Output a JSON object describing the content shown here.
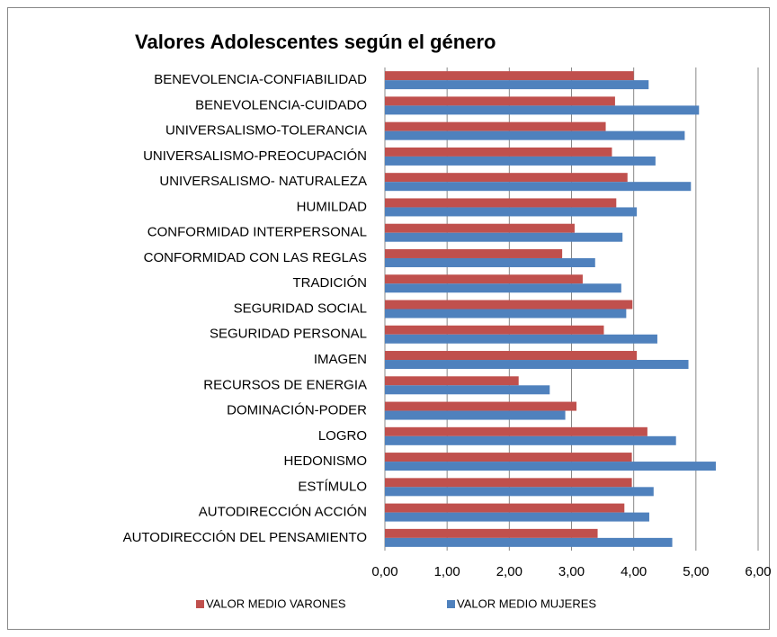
{
  "chart_data": {
    "type": "bar",
    "orientation": "horizontal",
    "title": "Valores Adolescentes según el género",
    "categories": [
      "BENEVOLENCIA-CONFIABILIDAD",
      "BENEVOLENCIA-CUIDADO",
      "UNIVERSALISMO-TOLERANCIA",
      "UNIVERSALISMO-PREOCUPACIÓN",
      "UNIVERSALISMO- NATURALEZA",
      "HUMILDAD",
      "CONFORMIDAD INTERPERSONAL",
      "CONFORMIDAD CON LAS REGLAS",
      "TRADICIÓN",
      "SEGURIDAD SOCIAL",
      "SEGURIDAD PERSONAL",
      "IMAGEN",
      "RECURSOS DE ENERGIA",
      "DOMINACIÓN-PODER",
      "LOGRO",
      "HEDONISMO",
      "ESTÍMULO",
      "AUTODIRECCIÓN ACCIÓN",
      "AUTODIRECCIÓN DEL PENSAMIENTO"
    ],
    "series": [
      {
        "name": "VALOR MEDIO VARONES",
        "color": "#c0504d",
        "values": [
          4.0,
          3.7,
          3.55,
          3.65,
          3.9,
          3.72,
          3.05,
          2.85,
          3.18,
          3.98,
          3.52,
          4.05,
          2.15,
          3.08,
          4.22,
          3.97,
          3.97,
          3.85,
          3.42
        ]
      },
      {
        "name": "VALOR MEDIO MUJERES",
        "color": "#4f81bd",
        "values": [
          4.24,
          5.05,
          4.82,
          4.35,
          4.92,
          4.05,
          3.82,
          3.38,
          3.8,
          3.88,
          4.38,
          4.88,
          2.65,
          2.9,
          4.68,
          5.32,
          4.32,
          4.25,
          4.62
        ]
      }
    ],
    "xlim": [
      0,
      6
    ],
    "xticks": [
      {
        "value": 0,
        "label": "0,00"
      },
      {
        "value": 1,
        "label": "1,00"
      },
      {
        "value": 2,
        "label": "2,00"
      },
      {
        "value": 3,
        "label": "3,00"
      },
      {
        "value": 4,
        "label": "4,00"
      },
      {
        "value": 5,
        "label": "5,00"
      },
      {
        "value": 6,
        "label": "6,00"
      }
    ],
    "grid": true,
    "legend": "bottom"
  }
}
